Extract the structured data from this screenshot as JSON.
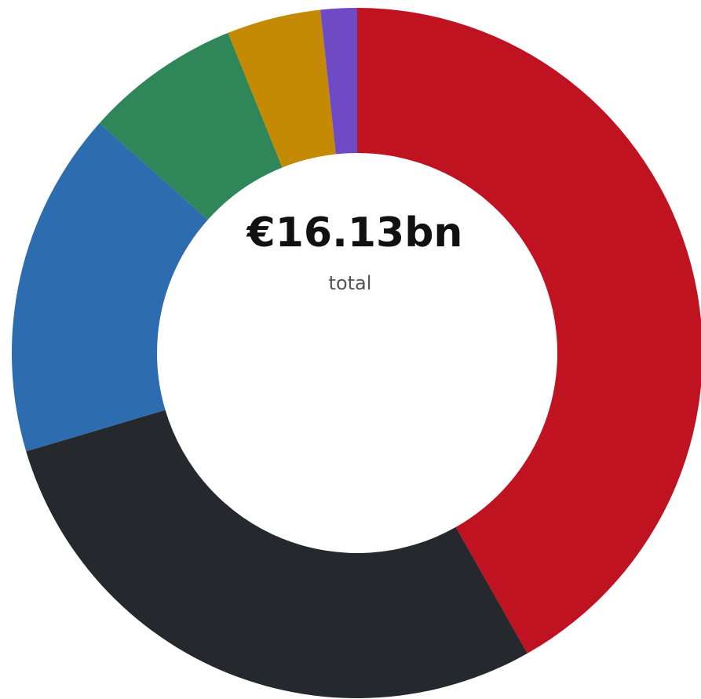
{
  "chart_data": {
    "type": "donut",
    "center_label": "€16.13bn",
    "center_sublabel": "total",
    "values": [
      41.8,
      28.6,
      16.2,
      7.3,
      4.4,
      1.7
    ],
    "colors": [
      "#c01321",
      "#25282c",
      "#2d6cae",
      "#2e8659",
      "#c58a03",
      "#6e4ac4"
    ]
  }
}
